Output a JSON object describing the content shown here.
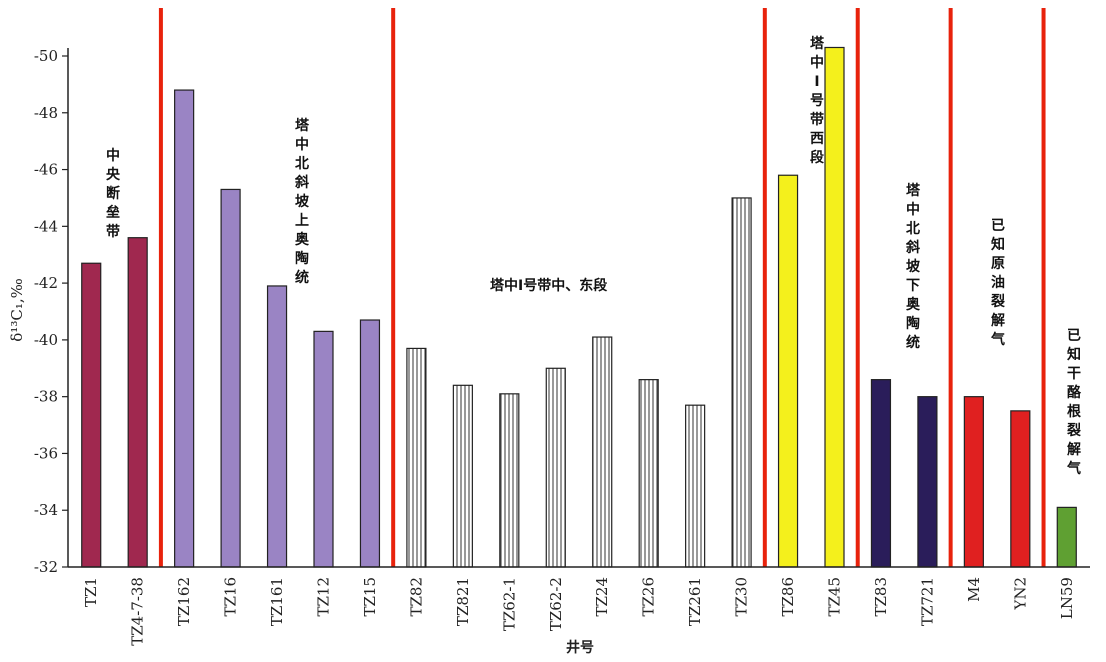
{
  "chart_data": {
    "type": "bar",
    "xlabel": "井号",
    "ylabel": "δ¹³C₁,‰",
    "ylim": [
      -32,
      -50
    ],
    "yticks": [
      -50,
      -48,
      -46,
      -44,
      -42,
      -40,
      -38,
      -36,
      -34,
      -32
    ],
    "categories": [
      "TZ1",
      "TZ4-7-38",
      "TZ162",
      "TZ16",
      "TZ161",
      "TZ12",
      "TZ15",
      "TZ82",
      "TZ821",
      "TZ62-1",
      "TZ62-2",
      "TZ24",
      "TZ26",
      "TZ261",
      "TZ30",
      "TZ86",
      "TZ45",
      "TZ83",
      "TZ721",
      "M4",
      "YN2",
      "LN59"
    ],
    "values": [
      -42.7,
      -43.6,
      -48.8,
      -45.3,
      -41.9,
      -40.3,
      -40.7,
      -39.7,
      -38.4,
      -38.1,
      -39.0,
      -40.1,
      -38.6,
      -37.7,
      -45.0,
      -45.8,
      -50.3,
      -38.6,
      -38.0,
      -38.0,
      -37.5,
      -34.1
    ],
    "bar_styles": [
      "crimson",
      "crimson",
      "purple",
      "purple",
      "purple",
      "purple",
      "purple",
      "hatched",
      "hatched",
      "hatched",
      "hatched",
      "hatched",
      "hatched",
      "hatched",
      "hatched",
      "yellow",
      "yellow",
      "navy",
      "navy",
      "red",
      "red",
      "green"
    ],
    "style_colors": {
      "crimson": "#a0284f",
      "purple": "#9a84c4",
      "hatched": "#ffffff",
      "yellow": "#f4f01c",
      "navy": "#2a1d5a",
      "red": "#e02020",
      "green": "#5fa032",
      "divider": "#e8220c"
    },
    "dividers_after_index": [
      1,
      6,
      14,
      16,
      18,
      20
    ],
    "annotations": [
      {
        "text": "中央断垒带",
        "vertical": true,
        "group": "TZ1–TZ4-7-38"
      },
      {
        "text": "塔中北斜坡上奥陶统",
        "vertical": true,
        "group": "TZ162–TZ15"
      },
      {
        "text": "塔中Ⅰ号带中、东段",
        "vertical": false,
        "group": "TZ82–TZ30"
      },
      {
        "text": "塔中Ⅰ号带西段",
        "vertical": true,
        "group": "TZ86–TZ45"
      },
      {
        "text": "塔中北斜坡下奥陶统",
        "vertical": true,
        "group": "TZ83–TZ721"
      },
      {
        "text": "已知原油裂解气",
        "vertical": true,
        "group": "M4–YN2"
      },
      {
        "text": "已知干酪根裂解气",
        "vertical": true,
        "group": "LN59"
      }
    ]
  }
}
